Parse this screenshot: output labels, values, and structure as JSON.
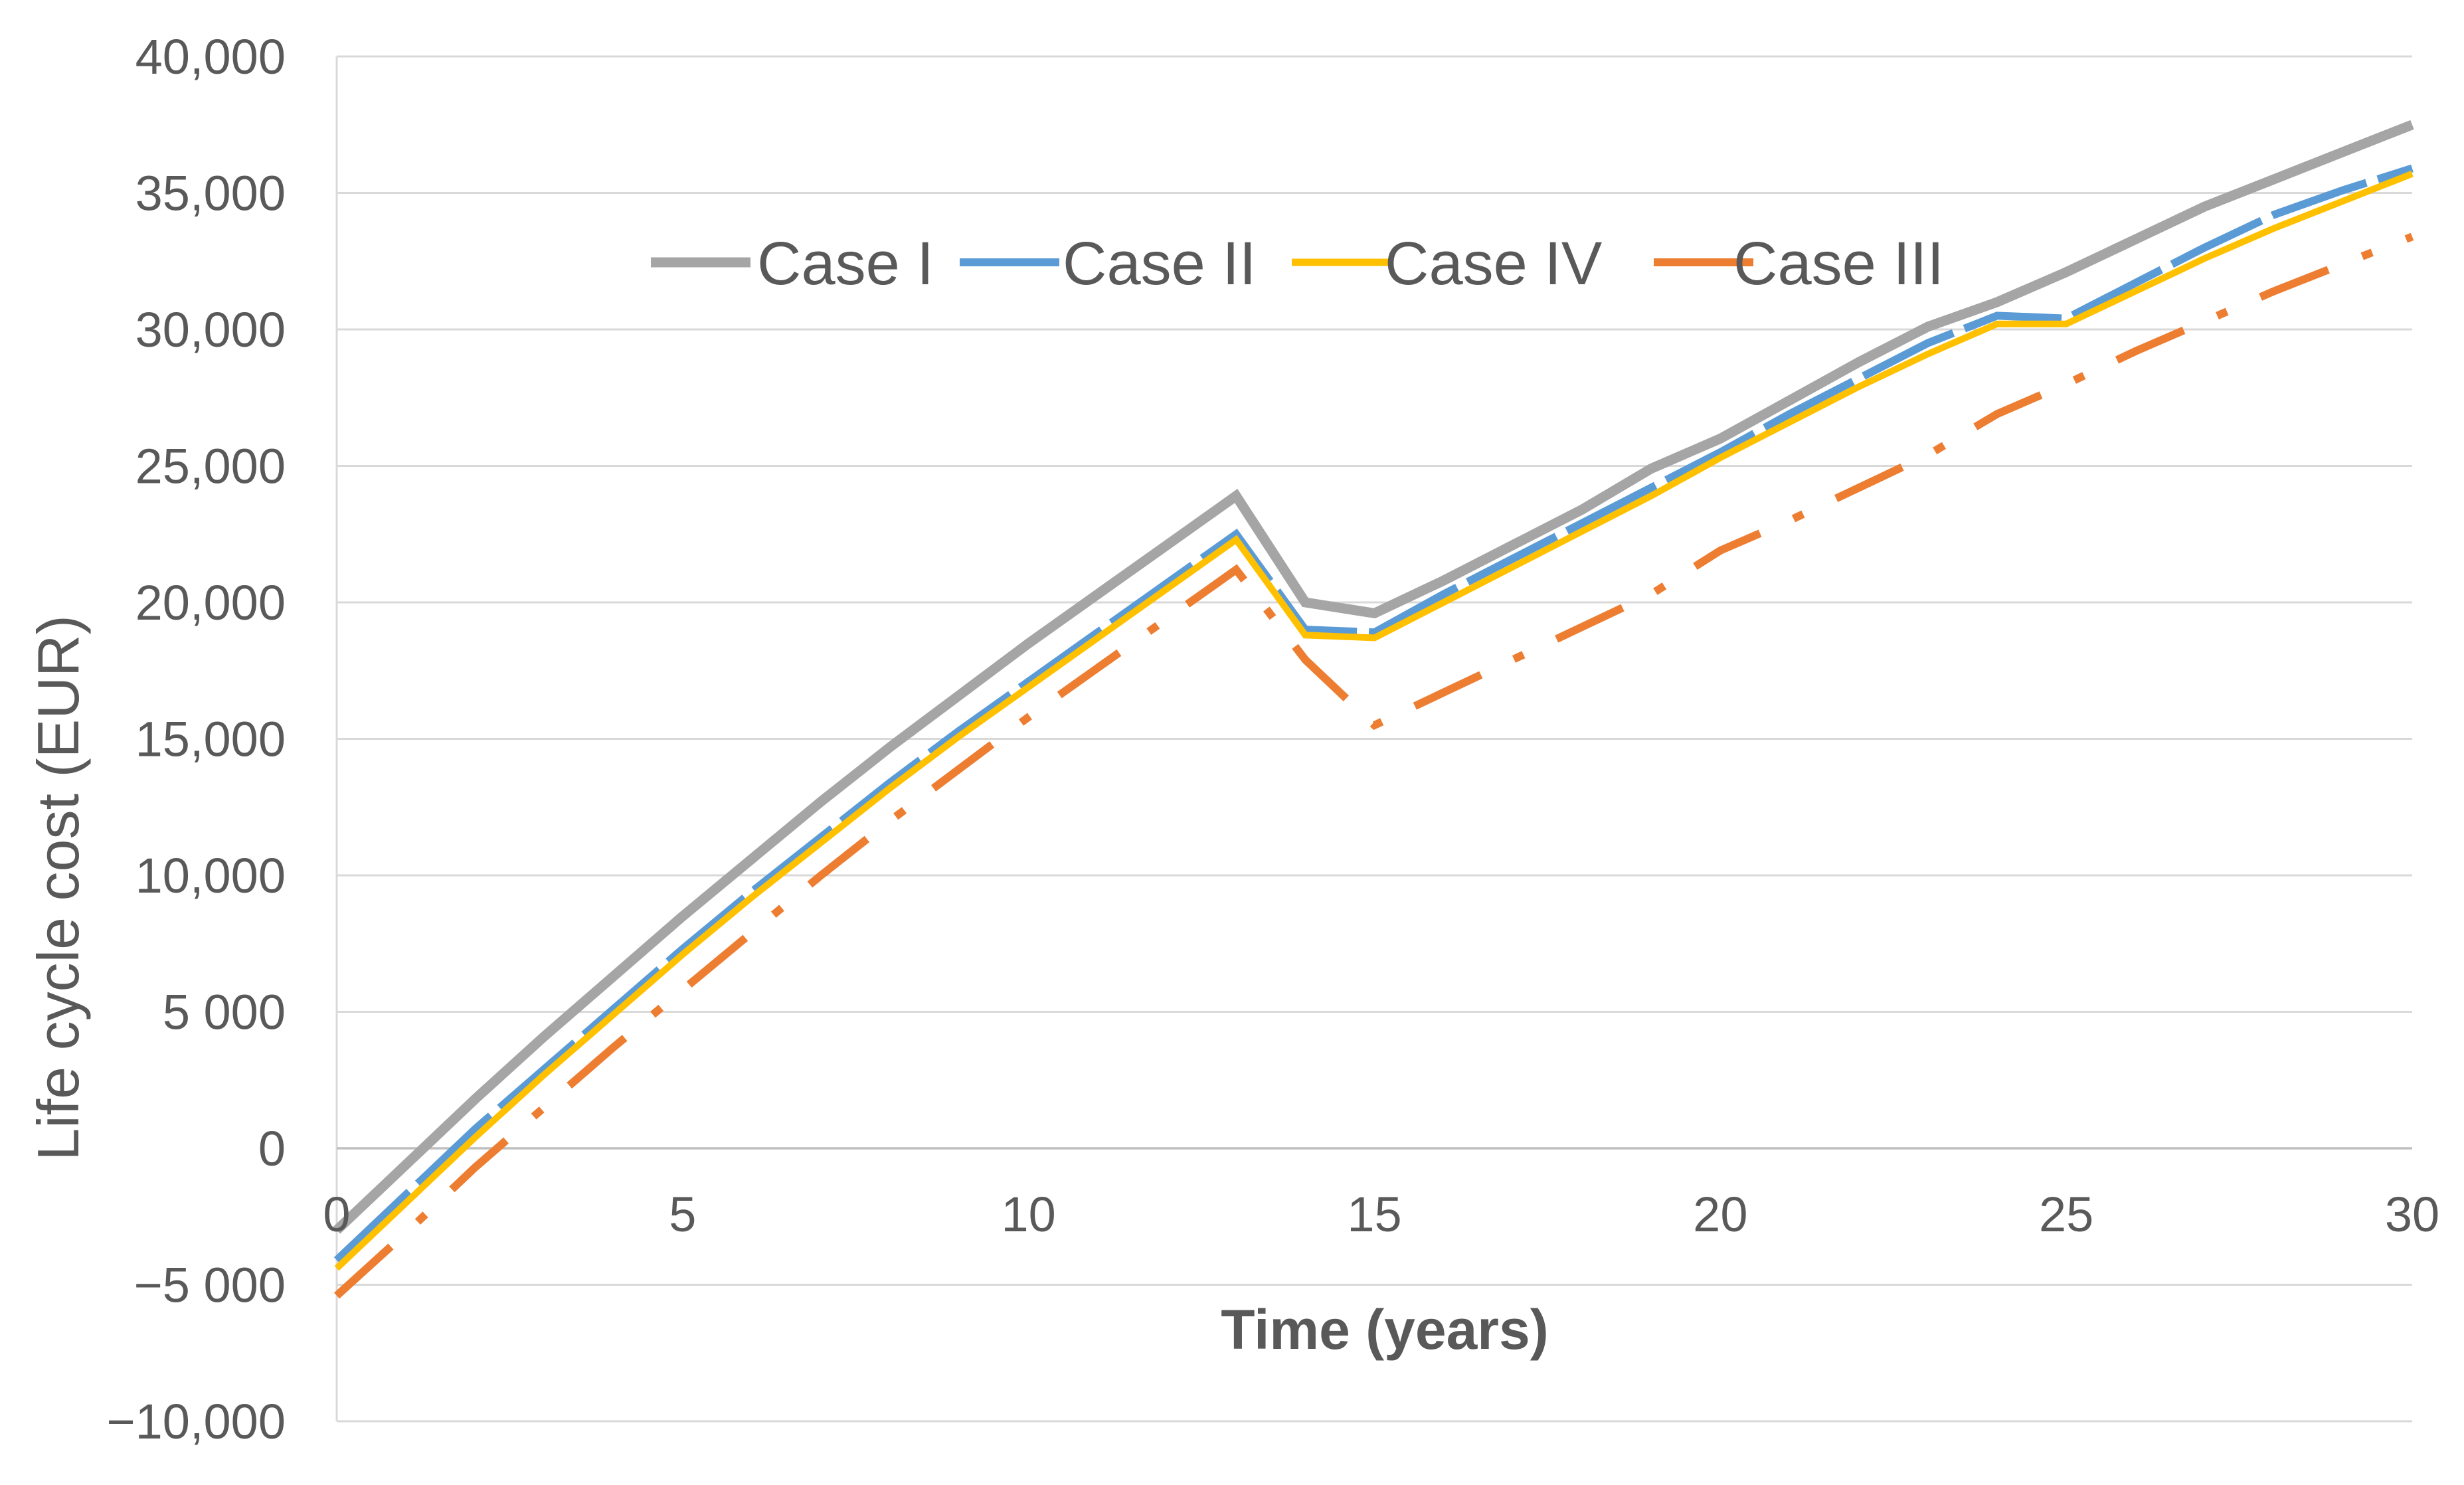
{
  "chart_data": {
    "type": "line",
    "title": "",
    "xlabel": "Time (years)",
    "ylabel": "Life cycle cost (EUR)",
    "xlim": [
      0,
      30
    ],
    "ylim": [
      -10000,
      40000
    ],
    "grid": "horizontal",
    "legend_position": "top-center",
    "x_ticks": [
      0,
      5,
      10,
      15,
      20,
      25,
      30
    ],
    "x_tick_labels": [
      "0",
      "5",
      "10",
      "15",
      "20",
      "25",
      "30"
    ],
    "y_ticks": [
      -10000,
      -5000,
      0,
      5000,
      10000,
      15000,
      20000,
      25000,
      30000,
      35000,
      40000
    ],
    "y_tick_labels": [
      "−10,000",
      "−5 000",
      "0",
      "5 000",
      "10,000",
      "15,000",
      "20,000",
      "25,000",
      "30,000",
      "35,000",
      "40,000"
    ],
    "series": [
      {
        "name": "Case I",
        "color": "#A5A5A5",
        "style": "solid",
        "x": [
          0,
          1,
          2,
          3,
          4,
          5,
          6,
          7,
          8,
          9,
          10,
          11,
          12,
          13,
          14,
          15,
          16,
          17,
          18,
          19,
          20,
          21,
          22,
          23,
          24,
          25,
          26,
          27,
          28,
          29,
          30
        ],
        "values": [
          -3000,
          -600,
          1800,
          4100,
          6300,
          8500,
          10600,
          12700,
          14700,
          16600,
          18500,
          20300,
          22100,
          23900,
          20000,
          19600,
          20800,
          22100,
          23400,
          24900,
          26000,
          27400,
          28800,
          30100,
          31000,
          32100,
          33300,
          34500,
          35500,
          36500,
          37500
        ]
      },
      {
        "name": "Case II",
        "color": "#5B9BD5",
        "style": "long-dash",
        "x": [
          0,
          1,
          2,
          3,
          4,
          5,
          6,
          7,
          8,
          9,
          10,
          11,
          12,
          13,
          14,
          15,
          16,
          17,
          18,
          19,
          20,
          21,
          22,
          23,
          24,
          25,
          26,
          27,
          28,
          29,
          30
        ],
        "values": [
          -4100,
          -1700,
          700,
          2900,
          5100,
          7300,
          9400,
          11400,
          13400,
          15300,
          17100,
          18900,
          20700,
          22500,
          19000,
          18900,
          20300,
          21600,
          22900,
          24200,
          25500,
          26900,
          28200,
          29500,
          30500,
          30400,
          31700,
          33000,
          34200,
          35100,
          35900
        ]
      },
      {
        "name": "Case IV",
        "color": "#FFC000",
        "style": "solid",
        "x": [
          0,
          1,
          2,
          3,
          4,
          5,
          6,
          7,
          8,
          9,
          10,
          11,
          12,
          13,
          14,
          15,
          16,
          17,
          18,
          19,
          20,
          21,
          22,
          23,
          24,
          25,
          26,
          27,
          28,
          29,
          30
        ],
        "values": [
          -4400,
          -2000,
          400,
          2700,
          4900,
          7100,
          9200,
          11200,
          13200,
          15100,
          16900,
          18700,
          20500,
          22300,
          18800,
          18700,
          20000,
          21300,
          22600,
          23900,
          25300,
          26600,
          27900,
          29100,
          30200,
          30200,
          31400,
          32600,
          33700,
          34700,
          35700
        ]
      },
      {
        "name": "Case III",
        "color": "#ED7D31",
        "style": "dash-dot",
        "x": [
          0,
          1,
          2,
          3,
          4,
          5,
          6,
          7,
          8,
          9,
          10,
          11,
          12,
          13,
          14,
          15,
          16,
          17,
          18,
          19,
          20,
          21,
          22,
          23,
          24,
          25,
          26,
          27,
          28,
          29,
          30
        ],
        "values": [
          -5400,
          -3100,
          -700,
          1500,
          3700,
          5800,
          7900,
          10000,
          12000,
          13900,
          15800,
          17600,
          19400,
          21200,
          17900,
          15500,
          16700,
          17900,
          19100,
          20300,
          21900,
          23000,
          24200,
          25400,
          26900,
          28000,
          29200,
          30300,
          31400,
          32400,
          33400
        ]
      }
    ]
  }
}
